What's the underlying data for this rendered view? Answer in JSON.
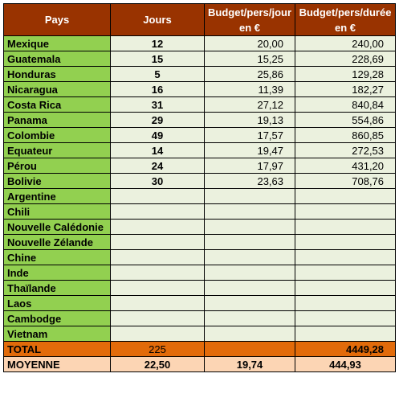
{
  "headers": {
    "pays": "Pays",
    "jours": "Jours",
    "budget_jour": "Budget/pers/jour",
    "budget_jour_unit": "en €",
    "budget_duree": "Budget/pers/durée",
    "budget_duree_unit": "en €"
  },
  "rows": [
    {
      "pays": "Mexique",
      "jours": "12",
      "budget_jour": "20,00",
      "budget_duree": "240,00"
    },
    {
      "pays": "Guatemala",
      "jours": "15",
      "budget_jour": "15,25",
      "budget_duree": "228,69"
    },
    {
      "pays": "Honduras",
      "jours": "5",
      "budget_jour": "25,86",
      "budget_duree": "129,28"
    },
    {
      "pays": "Nicaragua",
      "jours": "16",
      "budget_jour": "11,39",
      "budget_duree": "182,27"
    },
    {
      "pays": "Costa Rica",
      "jours": "31",
      "budget_jour": "27,12",
      "budget_duree": "840,84"
    },
    {
      "pays": "Panama",
      "jours": "29",
      "budget_jour": "19,13",
      "budget_duree": "554,86"
    },
    {
      "pays": "Colombie",
      "jours": "49",
      "budget_jour": "17,57",
      "budget_duree": "860,85"
    },
    {
      "pays": "Equateur",
      "jours": "14",
      "budget_jour": "19,47",
      "budget_duree": "272,53"
    },
    {
      "pays": "Pérou",
      "jours": "24",
      "budget_jour": "17,97",
      "budget_duree": "431,20"
    },
    {
      "pays": "Bolivie",
      "jours": "30",
      "budget_jour": "23,63",
      "budget_duree": "708,76"
    },
    {
      "pays": "Argentine",
      "jours": "",
      "budget_jour": "",
      "budget_duree": ""
    },
    {
      "pays": "Chili",
      "jours": "",
      "budget_jour": "",
      "budget_duree": ""
    },
    {
      "pays": "Nouvelle Calédonie",
      "jours": "",
      "budget_jour": "",
      "budget_duree": ""
    },
    {
      "pays": "Nouvelle Zélande",
      "jours": "",
      "budget_jour": "",
      "budget_duree": ""
    },
    {
      "pays": "Chine",
      "jours": "",
      "budget_jour": "",
      "budget_duree": ""
    },
    {
      "pays": "Inde",
      "jours": "",
      "budget_jour": "",
      "budget_duree": ""
    },
    {
      "pays": "Thaïlande",
      "jours": "",
      "budget_jour": "",
      "budget_duree": ""
    },
    {
      "pays": "Laos",
      "jours": "",
      "budget_jour": "",
      "budget_duree": ""
    },
    {
      "pays": "Cambodge",
      "jours": "",
      "budget_jour": "",
      "budget_duree": ""
    },
    {
      "pays": "Vietnam",
      "jours": "",
      "budget_jour": "",
      "budget_duree": ""
    }
  ],
  "total": {
    "label": "TOTAL",
    "jours": "225",
    "budget_jour": "",
    "budget_duree": "4449,28"
  },
  "moyenne": {
    "label": "MOYENNE",
    "jours": "22,50",
    "budget_jour": "19,74",
    "budget_duree": "444,93"
  },
  "colors": {
    "header_bg": "#993300",
    "pays_bg": "#92d050",
    "data_bg": "#ebf1de",
    "total_bg": "#e26b0a",
    "moyenne_bg": "#fcd5b4"
  }
}
